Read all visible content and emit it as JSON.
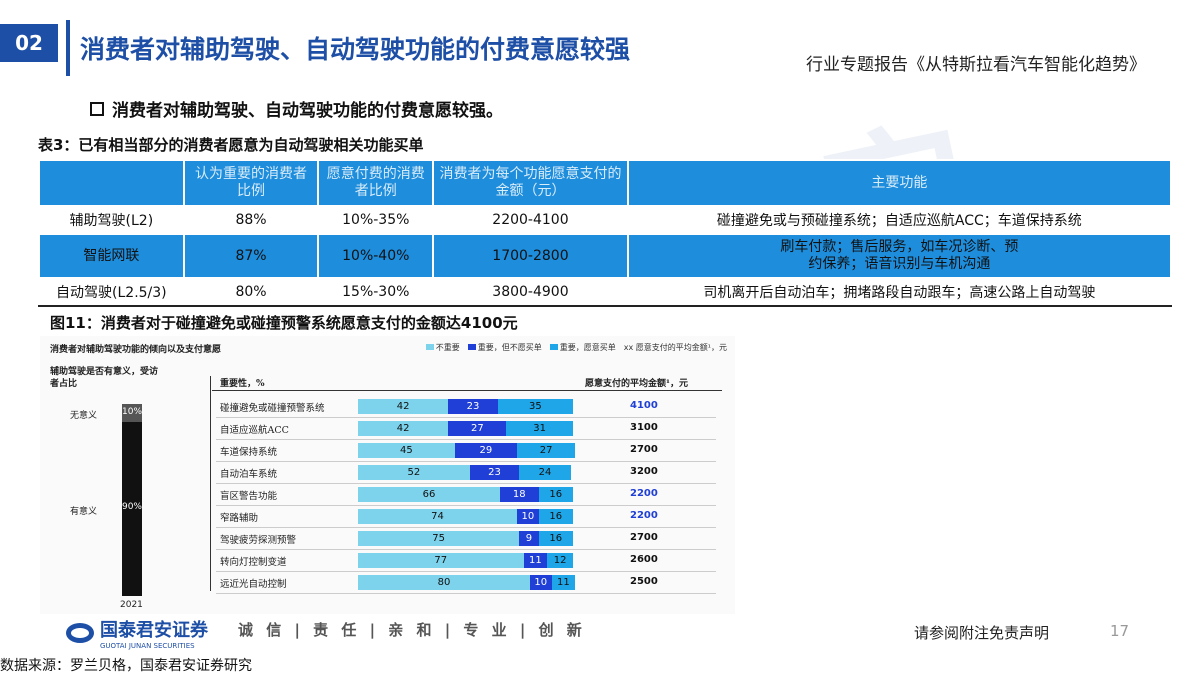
{
  "header": {
    "section_number": "02",
    "title": "消费者对辅助驾驶、自动驾驶功能的付费意愿较强",
    "report_name": "行业专题报告《从特斯拉看汽车智能化趋势》",
    "watermark": "安"
  },
  "bullet": "消费者对辅助驾驶、自动驾驶功能的付费意愿较强。",
  "table3": {
    "caption": "表3：已有相当部分的消费者愿意为自动驾驶相关功能买单",
    "headers": [
      "",
      "认为重要的消费者比例",
      "愿意付费的消费者比例",
      "消费者为每个功能愿意支付的金额（元）",
      "主要功能"
    ],
    "rows": [
      [
        "辅助驾驶(L2)",
        "88%",
        "10%-35%",
        "2200-4100",
        "碰撞避免或与预碰撞系统；自适应巡航ACC；车道保持系统"
      ],
      [
        "智能网联",
        "87%",
        "10%-40%",
        "1700-2800",
        "刷车付款；售后服务，如车况诊断、预约保养；语音识别与车机沟通"
      ],
      [
        "自动驾驶(L2.5/3)",
        "80%",
        "15%-30%",
        "3800-4900",
        "司机离开后自动泊车；拥堵路段自动跟车；高速公路上自动驾驶"
      ]
    ]
  },
  "figure11": {
    "caption": "图11：消费者对于碰撞避免或碰撞预警系统愿意支付的金额达4100元",
    "inner_title": "消费者对辅助驾驶功能的倾向以及支付意愿",
    "legend": [
      "不重要",
      "重要，但不愿买单",
      "重要，愿意买单",
      "xx 愿意支付的平均金额¹，元"
    ],
    "left_title": "辅助驾驶是否有意义，受访者占比",
    "year": "2021",
    "meaningless_label": "无意义",
    "meaningless_pct": "10%",
    "meaningful_label": "有意义",
    "meaningful_pct": "90%",
    "importance_header": "重要性，%",
    "price_header": "愿意支付的平均金额¹，元",
    "colors": {
      "not_important": "#7dd3ec",
      "important_no_pay": "#1f3fd6",
      "important_pay": "#1ea6e8",
      "dark": "#111111"
    }
  },
  "chart_data": {
    "type": "bar",
    "stacked": true,
    "orientation": "horizontal",
    "title": "消费者对辅助驾驶功能的倾向以及支付意愿",
    "xlabel": "重要性，%",
    "categories": [
      "碰撞避免或碰撞预警系统",
      "自适应巡航ACC",
      "车道保持系统",
      "自动泊车系统",
      "盲区警告功能",
      "窄路辅助",
      "驾驶疲劳探测预警",
      "转向灯控制变道",
      "远近光自动控制"
    ],
    "series": [
      {
        "name": "不重要",
        "values": [
          42,
          42,
          45,
          52,
          66,
          74,
          75,
          77,
          80
        ]
      },
      {
        "name": "重要，但不愿买单",
        "values": [
          23,
          27,
          29,
          23,
          18,
          10,
          9,
          11,
          10
        ]
      },
      {
        "name": "重要，愿意买单",
        "values": [
          35,
          31,
          27,
          24,
          16,
          16,
          16,
          12,
          11
        ]
      }
    ],
    "avg_payment": [
      "4100",
      "3100",
      "2700",
      "3200",
      "2200",
      "2200",
      "2700",
      "2600",
      "2500"
    ],
    "highlighted_payment": [
      true,
      false,
      false,
      false,
      true,
      true,
      false,
      false,
      false
    ],
    "xlim": [
      0,
      100
    ],
    "legend_position": "top-right"
  },
  "footer": {
    "logo_cn": "国泰君安证券",
    "logo_en": "GUOTAI JUNAN SECURITIES",
    "slogan": "诚 信 | 责 任 | 亲 和 | 专 业 | 创 新",
    "disclaimer": "请参阅附注免责声明",
    "page_number": "17",
    "source": "数据来源：罗兰贝格，国泰君安证券研究"
  }
}
